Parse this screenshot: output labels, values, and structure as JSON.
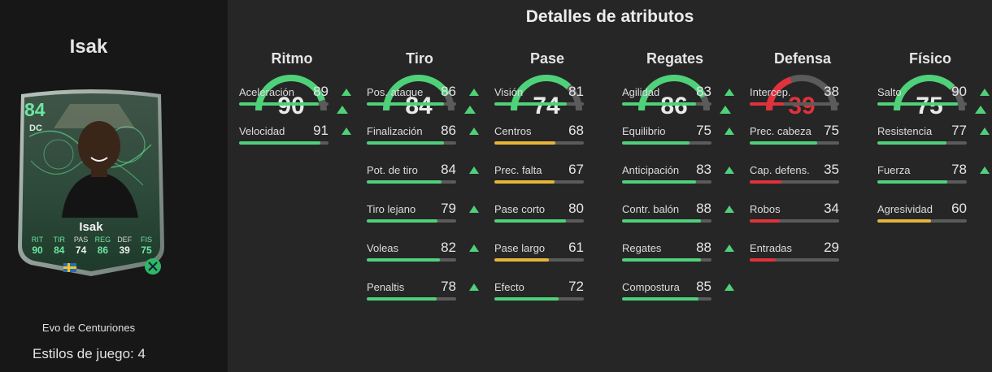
{
  "player": {
    "name": "Isak",
    "card": {
      "rating": "84",
      "position": "DC",
      "name": "Isak",
      "stats": [
        {
          "label": "RIT",
          "value": "90",
          "upgraded": true
        },
        {
          "label": "TIR",
          "value": "84",
          "upgraded": true
        },
        {
          "label": "PAS",
          "value": "74",
          "upgraded": false
        },
        {
          "label": "REG",
          "value": "86",
          "upgraded": true
        },
        {
          "label": "DEF",
          "value": "39",
          "upgraded": false
        },
        {
          "label": "FIS",
          "value": "75",
          "upgraded": true
        }
      ]
    },
    "card_subtitle": "Evo de Centuriones",
    "playstyles": "Estilos de juego: 4"
  },
  "colors": {
    "green": "#4fd17a",
    "yellow": "#e7b43a",
    "red": "#e0323c",
    "track": "#5b5b5b"
  },
  "title": "Detalles de atributos",
  "categories": [
    {
      "name": "Ritmo",
      "value": "90",
      "upgraded": true,
      "attributes": [
        {
          "name": "Aceleración",
          "value": 89,
          "upgraded": true
        },
        {
          "name": "Velocidad",
          "value": 91,
          "upgraded": true
        }
      ]
    },
    {
      "name": "Tiro",
      "value": "84",
      "upgraded": true,
      "attributes": [
        {
          "name": "Pos. ataque",
          "value": 86,
          "upgraded": true
        },
        {
          "name": "Finalización",
          "value": 86,
          "upgraded": true
        },
        {
          "name": "Pot. de tiro",
          "value": 84,
          "upgraded": true
        },
        {
          "name": "Tiro lejano",
          "value": 79,
          "upgraded": true
        },
        {
          "name": "Voleas",
          "value": 82,
          "upgraded": true
        },
        {
          "name": "Penaltis",
          "value": 78,
          "upgraded": true
        }
      ]
    },
    {
      "name": "Pase",
      "value": "74",
      "upgraded": false,
      "attributes": [
        {
          "name": "Visión",
          "value": 81,
          "upgraded": false
        },
        {
          "name": "Centros",
          "value": 68,
          "upgraded": false
        },
        {
          "name": "Prec. falta",
          "value": 67,
          "upgraded": false
        },
        {
          "name": "Pase corto",
          "value": 80,
          "upgraded": false
        },
        {
          "name": "Pase largo",
          "value": 61,
          "upgraded": false
        },
        {
          "name": "Efecto",
          "value": 72,
          "upgraded": false
        }
      ]
    },
    {
      "name": "Regates",
      "value": "86",
      "upgraded": true,
      "attributes": [
        {
          "name": "Agilidad",
          "value": 83,
          "upgraded": true
        },
        {
          "name": "Equilibrio",
          "value": 75,
          "upgraded": true
        },
        {
          "name": "Anticipación",
          "value": 83,
          "upgraded": true
        },
        {
          "name": "Contr. balón",
          "value": 88,
          "upgraded": true
        },
        {
          "name": "Regates",
          "value": 88,
          "upgraded": true
        },
        {
          "name": "Compostura",
          "value": 85,
          "upgraded": true
        }
      ]
    },
    {
      "name": "Defensa",
      "value": "39",
      "upgraded": false,
      "attributes": [
        {
          "name": "Intercep.",
          "value": 38,
          "upgraded": false
        },
        {
          "name": "Prec. cabeza",
          "value": 75,
          "upgraded": false
        },
        {
          "name": "Cap. defens.",
          "value": 35,
          "upgraded": false
        },
        {
          "name": "Robos",
          "value": 34,
          "upgraded": false
        },
        {
          "name": "Entradas",
          "value": 29,
          "upgraded": false
        }
      ]
    },
    {
      "name": "Físico",
      "value": "75",
      "upgraded": true,
      "attributes": [
        {
          "name": "Salto",
          "value": 90,
          "upgraded": true
        },
        {
          "name": "Resistencia",
          "value": 77,
          "upgraded": true
        },
        {
          "name": "Fuerza",
          "value": 78,
          "upgraded": true
        },
        {
          "name": "Agresividad",
          "value": 60,
          "upgraded": false
        }
      ]
    }
  ]
}
